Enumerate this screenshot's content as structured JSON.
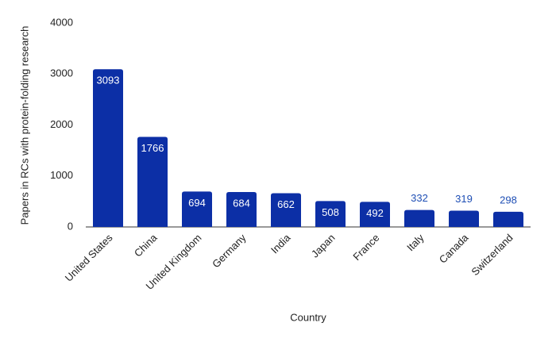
{
  "chart_data": {
    "type": "bar",
    "x_label": "Country",
    "y_label": "Papers in RCs with protein-folding research",
    "categories": [
      "United States",
      "China",
      "United Kingdom",
      "Germany",
      "India",
      "Japan",
      "France",
      "Italy",
      "Canada",
      "Switzerland"
    ],
    "values": [
      3093,
      1766,
      694,
      684,
      662,
      508,
      492,
      332,
      319,
      298
    ],
    "color": "#0c2fa6",
    "ylim": [
      0,
      4000
    ],
    "yticks": [
      0,
      1000,
      2000,
      3000,
      4000
    ],
    "grid": false
  }
}
